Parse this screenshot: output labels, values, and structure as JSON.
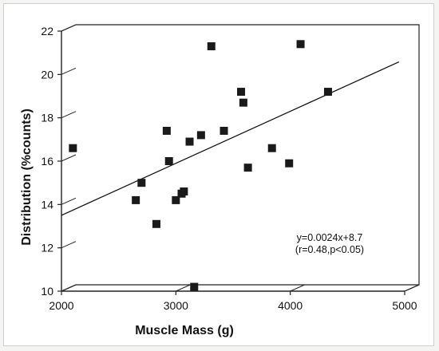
{
  "chart_data": {
    "type": "scatter",
    "title": "",
    "xlabel": "Muscle Mass (g)",
    "ylabel": "Distribution (%counts)",
    "xlim": [
      2000,
      5000
    ],
    "ylim": [
      10,
      22
    ],
    "xticks": [
      "2000",
      "3000",
      "4000",
      "5000"
    ],
    "yticks": [
      "10",
      "12",
      "14",
      "16",
      "18",
      "20",
      "22"
    ],
    "grid": false,
    "points": [
      {
        "x": 2100,
        "y": 16.6
      },
      {
        "x": 2650,
        "y": 14.2
      },
      {
        "x": 2700,
        "y": 15.0
      },
      {
        "x": 2830,
        "y": 13.1
      },
      {
        "x": 2920,
        "y": 17.4
      },
      {
        "x": 2940,
        "y": 16.0
      },
      {
        "x": 3000,
        "y": 14.2
      },
      {
        "x": 3050,
        "y": 14.5
      },
      {
        "x": 3070,
        "y": 14.6
      },
      {
        "x": 3120,
        "y": 16.9
      },
      {
        "x": 3160,
        "y": 10.2
      },
      {
        "x": 3220,
        "y": 17.2
      },
      {
        "x": 3310,
        "y": 21.3
      },
      {
        "x": 3420,
        "y": 17.4
      },
      {
        "x": 3570,
        "y": 19.2
      },
      {
        "x": 3590,
        "y": 18.7
      },
      {
        "x": 3630,
        "y": 15.7
      },
      {
        "x": 3840,
        "y": 16.6
      },
      {
        "x": 3990,
        "y": 15.9
      },
      {
        "x": 4090,
        "y": 21.4
      },
      {
        "x": 4330,
        "y": 19.2
      }
    ],
    "fit_line": {
      "slope": 0.0024,
      "intercept": 8.7
    },
    "annotation": [
      "y=0.0024x+8.7",
      "(r=0.48,p<0.05)"
    ]
  }
}
